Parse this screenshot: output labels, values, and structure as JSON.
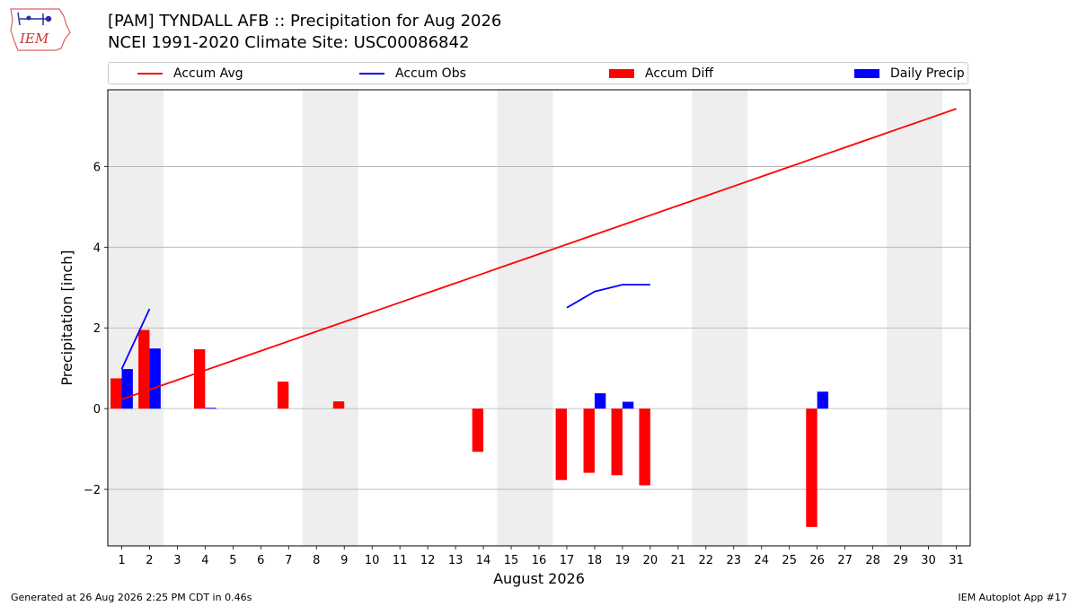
{
  "header": {
    "title_line1": "[PAM] TYNDALL AFB :: Precipitation for Aug 2026",
    "title_line2": "NCEI 1991-2020 Climate Site: USC00086842"
  },
  "logo": {
    "text": "IEM",
    "icon": "iowa-state-outline-with-weather-station-icon"
  },
  "footer": {
    "left": "Generated at 26 Aug 2026 2:25 PM CDT in 0.46s",
    "right": "IEM Autoplot App #17"
  },
  "colors": {
    "accum_avg": "#ff0000",
    "accum_obs": "#0000ff",
    "accum_diff": "#ff0000",
    "daily_precip": "#0000ff",
    "weekend_shade": "#eeeeee",
    "grid": "#b0b0b0"
  },
  "chart_data": {
    "type": "bar",
    "xlabel": "August 2026",
    "ylabel": "Precipitation [inch]",
    "x": [
      1,
      2,
      3,
      4,
      5,
      6,
      7,
      8,
      9,
      10,
      11,
      12,
      13,
      14,
      15,
      16,
      17,
      18,
      19,
      20,
      21,
      22,
      23,
      24,
      25,
      26,
      27,
      28,
      29,
      30,
      31
    ],
    "xlim": [
      0.5,
      31.5
    ],
    "ylim": [
      -3.4,
      7.9
    ],
    "yticks": [
      -2,
      0,
      2,
      4,
      6
    ],
    "ytick_labels": [
      "−2",
      "0",
      "2",
      "4",
      "6"
    ],
    "grid": "y",
    "legend_position": "top",
    "shaded_days": [
      [
        1,
        2
      ],
      [
        8,
        9
      ],
      [
        15,
        16
      ],
      [
        22,
        23
      ],
      [
        29,
        30
      ]
    ],
    "series": [
      {
        "name": "Accum Avg",
        "kind": "line",
        "x": [
          1,
          2,
          3,
          4,
          5,
          6,
          7,
          8,
          9,
          10,
          11,
          12,
          13,
          14,
          15,
          16,
          17,
          18,
          19,
          20,
          21,
          22,
          23,
          24,
          25,
          26,
          27,
          28,
          29,
          30,
          31
        ],
        "values": [
          0.23,
          0.47,
          0.71,
          0.95,
          1.19,
          1.43,
          1.67,
          1.91,
          2.15,
          2.39,
          2.63,
          2.87,
          3.11,
          3.35,
          3.59,
          3.83,
          4.07,
          4.31,
          4.55,
          4.79,
          5.03,
          5.27,
          5.51,
          5.75,
          5.99,
          6.23,
          6.47,
          6.71,
          6.95,
          7.19,
          7.43
        ]
      },
      {
        "name": "Accum Obs",
        "kind": "line",
        "x": [
          1,
          2,
          3,
          4,
          5,
          6,
          7,
          8,
          9,
          10,
          11,
          12,
          13,
          14,
          15,
          16,
          17,
          18,
          19,
          20,
          21,
          22,
          23,
          24,
          25,
          26,
          27,
          28,
          29,
          30,
          31
        ],
        "values": [
          0.98,
          2.47,
          null,
          null,
          null,
          null,
          null,
          null,
          null,
          null,
          null,
          null,
          null,
          null,
          null,
          null,
          2.5,
          2.9,
          3.07,
          3.07,
          null,
          null,
          null,
          null,
          null,
          null,
          null,
          null,
          null,
          null,
          null
        ]
      },
      {
        "name": "Accum Diff",
        "kind": "bar",
        "x": [
          1,
          2,
          3,
          4,
          5,
          6,
          7,
          8,
          9,
          10,
          11,
          12,
          13,
          14,
          15,
          16,
          17,
          18,
          19,
          20,
          21,
          22,
          23,
          24,
          25,
          26,
          27,
          28,
          29,
          30,
          31
        ],
        "values": [
          0.75,
          1.95,
          null,
          1.47,
          null,
          null,
          0.67,
          null,
          0.18,
          null,
          null,
          null,
          null,
          -1.07,
          null,
          null,
          -1.77,
          -1.59,
          -1.65,
          -1.9,
          null,
          null,
          null,
          null,
          null,
          -2.93,
          null,
          null,
          null,
          null,
          null
        ]
      },
      {
        "name": "Daily Precip",
        "kind": "bar",
        "x": [
          1,
          2,
          3,
          4,
          5,
          6,
          7,
          8,
          9,
          10,
          11,
          12,
          13,
          14,
          15,
          16,
          17,
          18,
          19,
          20,
          21,
          22,
          23,
          24,
          25,
          26,
          27,
          28,
          29,
          30,
          31
        ],
        "values": [
          0.98,
          1.49,
          null,
          0.02,
          null,
          null,
          null,
          null,
          null,
          null,
          null,
          null,
          null,
          null,
          null,
          null,
          null,
          0.38,
          0.17,
          null,
          null,
          null,
          null,
          null,
          null,
          0.42,
          null,
          null,
          null,
          null,
          null
        ]
      }
    ]
  }
}
